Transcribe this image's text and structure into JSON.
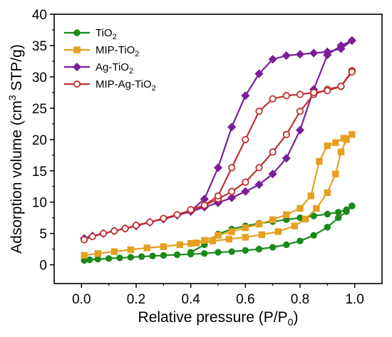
{
  "chart_data": {
    "type": "line",
    "xlabel": "Relative pressure (P/P₀)",
    "ylabel": "Adsorption volume (cm³ STP/g)",
    "xlim": [
      -0.1,
      1.1
    ],
    "ylim": [
      -3,
      40
    ],
    "xticks": [
      0.0,
      0.2,
      0.4,
      0.6,
      0.8,
      1.0
    ],
    "xtick_labels": [
      "0.0",
      "0.2",
      "0.4",
      "0.6",
      "0.8",
      "1.0"
    ],
    "yticks": [
      0,
      5,
      10,
      15,
      20,
      25,
      30,
      35,
      40
    ],
    "ytick_labels": [
      "0",
      "5",
      "10",
      "15",
      "20",
      "25",
      "30",
      "35",
      "40"
    ],
    "legend_position": "top-left",
    "series": [
      {
        "name": "TiO₂",
        "color": "#1a8a1a",
        "marker": "circle",
        "adsorption": {
          "x": [
            0.01,
            0.03,
            0.06,
            0.1,
            0.14,
            0.18,
            0.22,
            0.26,
            0.3,
            0.35,
            0.4,
            0.45,
            0.5,
            0.55,
            0.6,
            0.65,
            0.7,
            0.75,
            0.8,
            0.85,
            0.9,
            0.94,
            0.97,
            0.99
          ],
          "y": [
            0.7,
            0.8,
            0.9,
            1.0,
            1.1,
            1.2,
            1.3,
            1.4,
            1.5,
            1.6,
            1.7,
            1.8,
            2.0,
            2.1,
            2.3,
            2.5,
            2.8,
            3.2,
            3.8,
            4.7,
            6.0,
            7.5,
            8.5,
            9.4
          ]
        },
        "desorption": {
          "x": [
            0.99,
            0.97,
            0.94,
            0.9,
            0.85,
            0.8,
            0.75,
            0.7,
            0.65,
            0.6,
            0.55,
            0.5,
            0.45,
            0.4
          ],
          "y": [
            9.4,
            8.8,
            8.4,
            8.1,
            7.8,
            7.5,
            7.2,
            6.9,
            6.6,
            6.2,
            5.7,
            4.9,
            3.2,
            2.0
          ]
        }
      },
      {
        "name": "MIP-TiO₂",
        "color": "#e6a020",
        "marker": "square",
        "adsorption": {
          "x": [
            0.01,
            0.06,
            0.12,
            0.18,
            0.24,
            0.3,
            0.36,
            0.42,
            0.48,
            0.54,
            0.6,
            0.66,
            0.72,
            0.78,
            0.82,
            0.86,
            0.9,
            0.93,
            0.95,
            0.97,
            0.99
          ],
          "y": [
            1.5,
            1.8,
            2.1,
            2.4,
            2.7,
            2.9,
            3.2,
            3.5,
            3.8,
            4.1,
            4.4,
            4.8,
            5.3,
            6.2,
            7.3,
            9.0,
            11.5,
            14.5,
            18.0,
            20.0,
            20.8
          ]
        },
        "desorption": {
          "x": [
            0.99,
            0.96,
            0.93,
            0.9,
            0.87,
            0.84,
            0.8,
            0.75,
            0.7,
            0.65,
            0.6,
            0.55,
            0.5,
            0.45,
            0.4
          ],
          "y": [
            20.8,
            20.2,
            19.5,
            19.0,
            16.5,
            11.0,
            9.0,
            8.0,
            7.2,
            6.5,
            5.9,
            5.3,
            4.7,
            3.9,
            3.4
          ]
        }
      },
      {
        "name": "Ag-TiO₂",
        "color": "#7a1f9a",
        "marker": "diamond",
        "adsorption": {
          "x": [
            0.01,
            0.04,
            0.08,
            0.12,
            0.16,
            0.2,
            0.25,
            0.3,
            0.35,
            0.4,
            0.45,
            0.5,
            0.55,
            0.6,
            0.65,
            0.7,
            0.75,
            0.8,
            0.85,
            0.9,
            0.95,
            0.99
          ],
          "y": [
            4.2,
            4.6,
            5.0,
            5.4,
            5.8,
            6.2,
            6.8,
            7.3,
            7.9,
            8.5,
            9.2,
            9.9,
            10.7,
            11.7,
            12.8,
            14.5,
            17.0,
            21.5,
            28.0,
            33.5,
            35.0,
            35.8
          ]
        },
        "desorption": {
          "x": [
            0.99,
            0.95,
            0.9,
            0.85,
            0.8,
            0.75,
            0.7,
            0.65,
            0.6,
            0.55,
            0.5,
            0.45,
            0.4
          ],
          "y": [
            35.8,
            34.5,
            34.0,
            33.8,
            33.6,
            33.4,
            32.8,
            30.5,
            27.0,
            22.0,
            15.5,
            10.5,
            8.6
          ]
        }
      },
      {
        "name": "MIP-Ag-TiO₂",
        "color": "#c03030",
        "marker": "open-circle",
        "adsorption": {
          "x": [
            0.01,
            0.04,
            0.08,
            0.12,
            0.16,
            0.2,
            0.25,
            0.3,
            0.35,
            0.4,
            0.45,
            0.5,
            0.55,
            0.6,
            0.65,
            0.7,
            0.75,
            0.8,
            0.85,
            0.9,
            0.95,
            0.99
          ],
          "y": [
            4.0,
            4.5,
            5.0,
            5.4,
            5.8,
            6.3,
            6.8,
            7.4,
            8.0,
            8.7,
            9.5,
            10.5,
            11.7,
            13.2,
            15.5,
            18.0,
            20.8,
            24.5,
            27.2,
            28.0,
            28.5,
            31.0
          ]
        },
        "desorption": {
          "x": [
            0.99,
            0.95,
            0.9,
            0.85,
            0.8,
            0.75,
            0.7,
            0.65,
            0.6,
            0.55,
            0.5,
            0.45,
            0.4
          ],
          "y": [
            30.8,
            28.5,
            27.8,
            27.5,
            27.2,
            27.0,
            26.5,
            24.5,
            20.0,
            15.5,
            11.0,
            9.5,
            8.8
          ]
        }
      }
    ]
  }
}
